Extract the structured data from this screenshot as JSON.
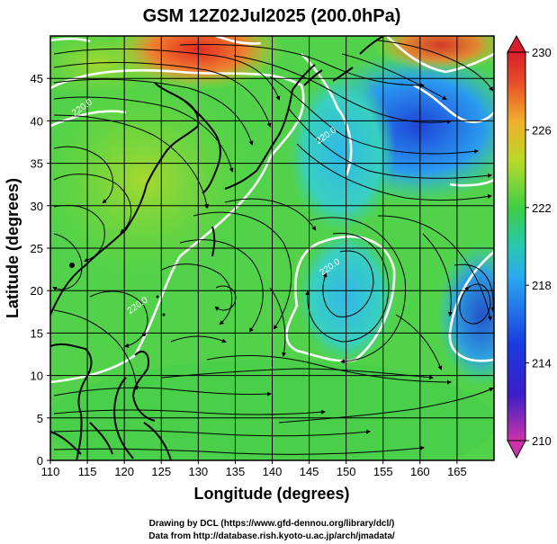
{
  "title": "GSM 12Z02Jul2025 (200.0hPa)",
  "xaxis": {
    "label": "Longitude (degrees)",
    "min": 110,
    "max": 170,
    "ticks": [
      "110",
      "115",
      "120",
      "125",
      "130",
      "135",
      "140",
      "145",
      "150",
      "155",
      "160",
      "165"
    ]
  },
  "yaxis": {
    "label": "Latitude  (degrees)",
    "min": 0,
    "max": 50,
    "ticks": [
      "0",
      "5",
      "10",
      "15",
      "20",
      "25",
      "30",
      "35",
      "40",
      "45"
    ]
  },
  "grid": true,
  "colorbar": {
    "min": 210,
    "max": 230,
    "ticks": [
      "210",
      "214",
      "218",
      "222",
      "226",
      "230"
    ],
    "colors": [
      "#cc33aa",
      "#1a2bd0",
      "#2f8ff0",
      "#28c8b0",
      "#3fcf45",
      "#b9d92a",
      "#f0a82a",
      "#e84a2a",
      "#d81e2a"
    ]
  },
  "contour_labels": [
    {
      "text": "220.0",
      "lon": 114.5,
      "lat": 41.3
    },
    {
      "text": "220.0",
      "lon": 147.5,
      "lat": 38.0
    },
    {
      "text": "220.0",
      "lon": 148.0,
      "lat": 22.5
    },
    {
      "text": "220.0",
      "lon": 122.0,
      "lat": 18.0
    }
  ],
  "footer": {
    "line1": "Drawing by DCL (https://www.gfd-dennou.org/library/dcl/)",
    "line2": "Data from http://database.rish.kyoto-u.ac.jp/arch/jmadata/"
  }
}
